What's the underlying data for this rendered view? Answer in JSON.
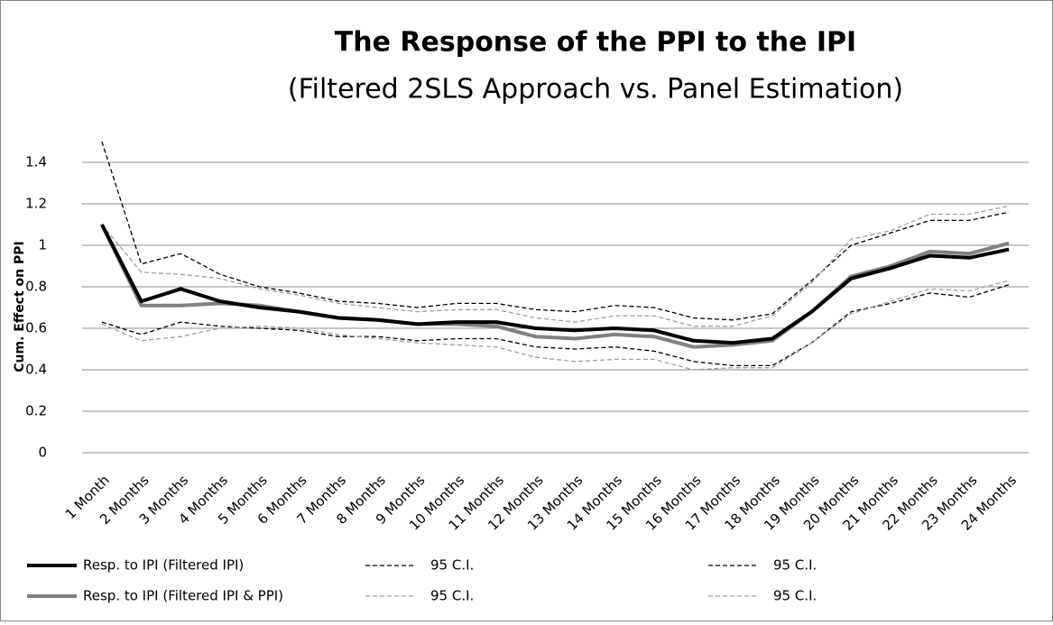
{
  "chart_data": {
    "type": "line",
    "title": "The Response of the PPI to the IPI",
    "subtitle": "(Filtered 2SLS Approach vs. Panel Estimation)",
    "y_label": "Cum. Effect on PPI",
    "categories": [
      "1 Month",
      "2 Months",
      "3 Months",
      "4 Months",
      "5 Months",
      "6 Months",
      "7 Months",
      "8 Months",
      "9 Months",
      "10 Months",
      "11 Months",
      "12 Months",
      "13 Months",
      "14 Months",
      "15 Months",
      "16 Months",
      "17 Months",
      "18 Months",
      "19 Months",
      "20 Months",
      "21 Months",
      "22 Months",
      "23 Months",
      "24 Months"
    ],
    "series": [
      {
        "name": "Resp. to IPI (Filtered IPI)",
        "color": "#000000",
        "style": "solid",
        "values": [
          1.1,
          0.73,
          0.79,
          0.73,
          0.7,
          0.68,
          0.65,
          0.64,
          0.62,
          0.63,
          0.63,
          0.6,
          0.59,
          0.6,
          0.59,
          0.54,
          0.53,
          0.55,
          0.68,
          0.84,
          0.89,
          0.95,
          0.94,
          0.98
        ]
      },
      {
        "name": "95 C.I.",
        "color": "#000000",
        "style": "dashed",
        "values": [
          1.5,
          0.91,
          0.96,
          0.86,
          0.8,
          0.77,
          0.73,
          0.72,
          0.7,
          0.72,
          0.72,
          0.69,
          0.68,
          0.71,
          0.7,
          0.65,
          0.64,
          0.67,
          0.83,
          1.0,
          1.06,
          1.12,
          1.12,
          1.16
        ]
      },
      {
        "name": "95 C.I.",
        "color": "#000000",
        "style": "dashed",
        "values": [
          0.63,
          0.57,
          0.63,
          0.61,
          0.6,
          0.59,
          0.56,
          0.56,
          0.54,
          0.55,
          0.55,
          0.51,
          0.5,
          0.51,
          0.49,
          0.44,
          0.42,
          0.42,
          0.53,
          0.68,
          0.72,
          0.77,
          0.75,
          0.81
        ]
      },
      {
        "name": "Resp. to IPI (Filtered IPI & PPI)",
        "color": "#808080",
        "style": "solid",
        "values": [
          1.1,
          0.71,
          0.71,
          0.72,
          0.71,
          0.68,
          0.65,
          0.64,
          0.62,
          0.62,
          0.61,
          0.56,
          0.55,
          0.57,
          0.56,
          0.51,
          0.52,
          0.54,
          0.68,
          0.85,
          0.9,
          0.97,
          0.96,
          1.01
        ]
      },
      {
        "name": "95 C.I.",
        "color": "#a0a0a0",
        "style": "dashed",
        "values": [
          1.1,
          0.87,
          0.86,
          0.84,
          0.79,
          0.76,
          0.72,
          0.7,
          0.68,
          0.69,
          0.69,
          0.65,
          0.63,
          0.66,
          0.66,
          0.61,
          0.61,
          0.66,
          0.82,
          1.03,
          1.07,
          1.15,
          1.15,
          1.19
        ]
      },
      {
        "name": "95 C.I.",
        "color": "#a0a0a0",
        "style": "dashed",
        "values": [
          0.62,
          0.54,
          0.56,
          0.6,
          0.61,
          0.6,
          0.57,
          0.55,
          0.53,
          0.52,
          0.51,
          0.46,
          0.44,
          0.45,
          0.45,
          0.4,
          0.41,
          0.41,
          0.53,
          0.67,
          0.73,
          0.79,
          0.78,
          0.83
        ]
      }
    ],
    "ylim": [
      0,
      1.5
    ],
    "yticks": [
      0,
      0.2,
      0.4,
      0.6,
      0.8,
      1,
      1.2,
      1.4
    ],
    "grid": true,
    "legend": "bottom"
  }
}
